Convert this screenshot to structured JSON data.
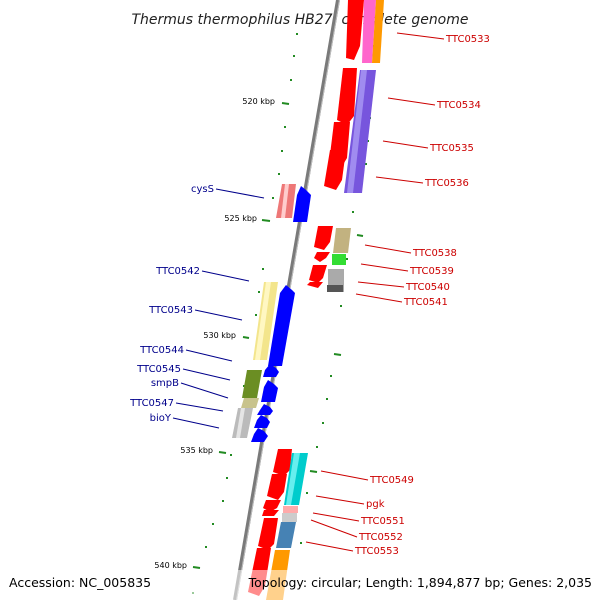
{
  "title": "Thermus thermophilus HB27, complete genome",
  "footer": {
    "accession": "Accession: NC_005835",
    "topology": "Topology: circular; Length: 1,894,877 bp; Genes: 2,035"
  },
  "axis": {
    "ticks": [
      "520 kbp",
      "525 kbp",
      "530 kbp",
      "535 kbp",
      "540 kbp"
    ]
  },
  "genes": {
    "left": [
      "cysS",
      "TTC0542",
      "TTC0543",
      "TTC0544",
      "TTC0545",
      "smpB",
      "TTC0547",
      "bioY"
    ],
    "right": [
      "TTC0533",
      "TTC0534",
      "TTC0535",
      "TTC0536",
      "TTC0538",
      "TTC0539",
      "TTC0540",
      "TTC0541",
      "TTC0549",
      "pgk",
      "TTC0551",
      "TTC0552",
      "TTC0553"
    ]
  },
  "colors": {
    "forward_strand": "#0000ff",
    "reverse_strand": "#ff0000",
    "left_label": "#00008b",
    "right_label": "#cc0000",
    "tick": "#006400",
    "backbone": "#808080"
  }
}
